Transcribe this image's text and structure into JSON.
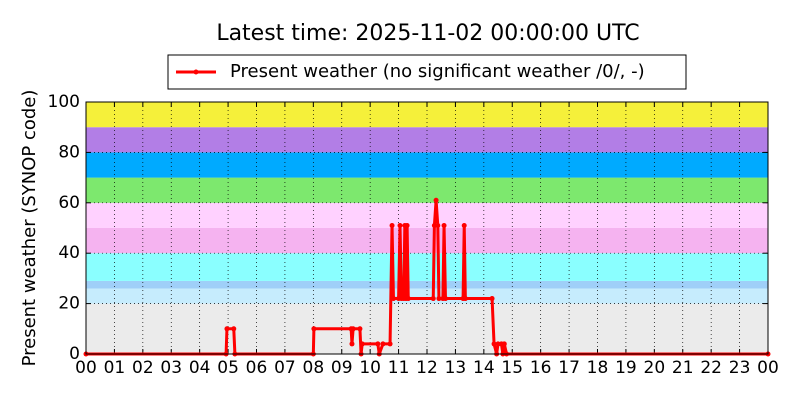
{
  "chart_data": {
    "type": "line",
    "title": "Latest time: 2025-11-02 00:00:00 UTC",
    "y_label": "Present weather (SYNOP code)",
    "xlim": [
      0,
      24
    ],
    "xticks": [
      {
        "value": 0,
        "label": "00"
      },
      {
        "value": 1,
        "label": "01"
      },
      {
        "value": 2,
        "label": "02"
      },
      {
        "value": 3,
        "label": "03"
      },
      {
        "value": 4,
        "label": "04"
      },
      {
        "value": 5,
        "label": "05"
      },
      {
        "value": 6,
        "label": "06"
      },
      {
        "value": 7,
        "label": "07"
      },
      {
        "value": 8,
        "label": "08"
      },
      {
        "value": 9,
        "label": "09"
      },
      {
        "value": 10,
        "label": "10"
      },
      {
        "value": 11,
        "label": "11"
      },
      {
        "value": 12,
        "label": "12"
      },
      {
        "value": 13,
        "label": "13"
      },
      {
        "value": 14,
        "label": "14"
      },
      {
        "value": 15,
        "label": "15"
      },
      {
        "value": 16,
        "label": "16"
      },
      {
        "value": 17,
        "label": "17"
      },
      {
        "value": 18,
        "label": "18"
      },
      {
        "value": 19,
        "label": "19"
      },
      {
        "value": 20,
        "label": "20"
      },
      {
        "value": 21,
        "label": "21"
      },
      {
        "value": 22,
        "label": "22"
      },
      {
        "value": 23,
        "label": "23"
      },
      {
        "value": 24,
        "label": "00"
      }
    ],
    "ylim": [
      0,
      100
    ],
    "yticks": [
      0,
      20,
      40,
      60,
      80,
      100
    ],
    "grid": true,
    "bands": [
      {
        "from": 0,
        "to": 20,
        "color": "#ebebeb"
      },
      {
        "from": 20,
        "to": 26,
        "color": "#c6ecfd"
      },
      {
        "from": 26,
        "to": 29,
        "color": "#9fcff8"
      },
      {
        "from": 29,
        "to": 40,
        "color": "#8affff"
      },
      {
        "from": 40,
        "to": 50,
        "color": "#f5b3f0"
      },
      {
        "from": 50,
        "to": 60,
        "color": "#ffd1ff"
      },
      {
        "from": 60,
        "to": 70,
        "color": "#7de86e"
      },
      {
        "from": 70,
        "to": 80,
        "color": "#00aaff"
      },
      {
        "from": 80,
        "to": 90,
        "color": "#b27ee6"
      },
      {
        "from": 90,
        "to": 100,
        "color": "#f5f03a"
      }
    ],
    "x": [
      0,
      4.93,
      4.96,
      5.2,
      5.24,
      8.0,
      8.02,
      9.33,
      9.36,
      9.4,
      9.64,
      9.68,
      9.72,
      10.27,
      10.32,
      10.45,
      10.7,
      10.77,
      10.82,
      11.0,
      11.05,
      11.1,
      11.18,
      11.22,
      11.26,
      11.3,
      11.34,
      12.22,
      12.26,
      12.32,
      12.38,
      12.42,
      12.56,
      12.6,
      12.65,
      13.27,
      13.31,
      13.35,
      14.29,
      14.36,
      14.45,
      14.5,
      14.62,
      14.67,
      14.72,
      14.8,
      24
    ],
    "series": [
      {
        "name": "Present weather (no significant weather /0/, -)",
        "color": "#ff0000",
        "values": [
          0,
          0,
          10,
          10,
          0,
          0,
          10,
          10,
          4,
          10,
          10,
          0,
          4,
          4,
          0,
          4,
          4,
          51,
          22,
          22,
          51,
          22,
          22,
          51,
          22,
          51,
          22,
          22,
          51,
          61,
          51,
          22,
          22,
          51,
          22,
          22,
          51,
          22,
          22,
          4,
          0,
          4,
          4,
          0,
          4,
          0,
          0
        ]
      }
    ]
  }
}
